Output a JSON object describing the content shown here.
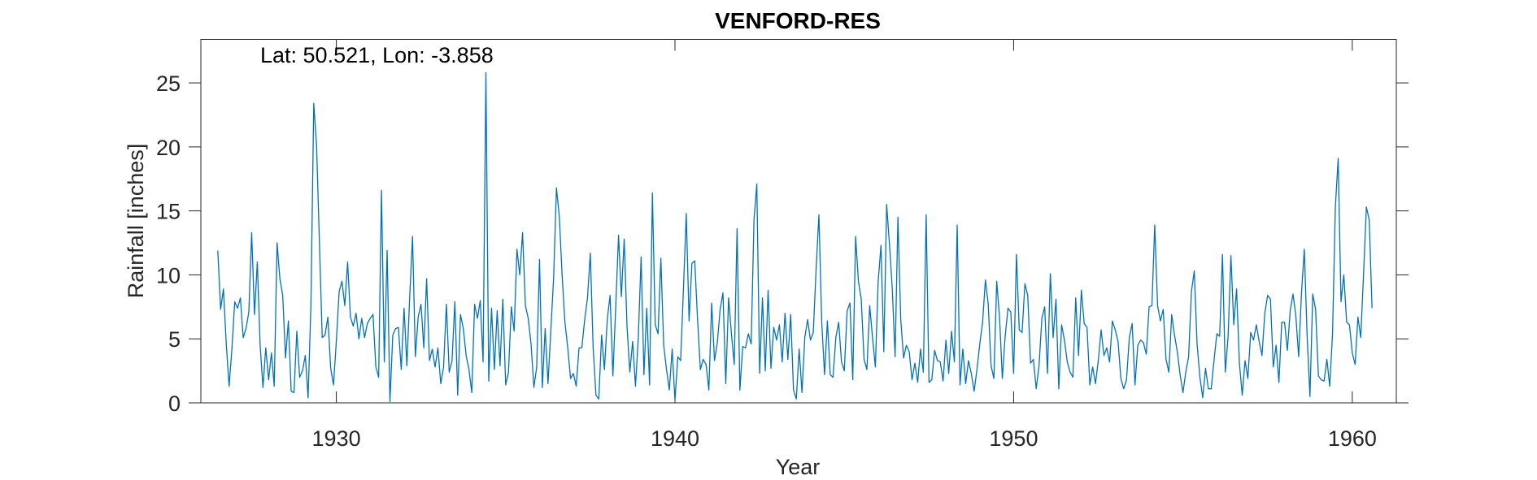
{
  "chart_data": {
    "type": "line",
    "title": "VENFORD-RES",
    "xlabel": "Year",
    "ylabel": "Rainfall [inches]",
    "annotation": "Lat: 50.521, Lon: -3.858",
    "xlim": [
      1926,
      1961.3
    ],
    "ylim": [
      0,
      28.4
    ],
    "xticks": [
      1930,
      1940,
      1950,
      1960
    ],
    "yticks": [
      0,
      5,
      10,
      15,
      20,
      25
    ],
    "grid": false,
    "legend": "none",
    "line_color": "#0072BD",
    "series": [
      {
        "start_year": 1926.5,
        "step_years": 0.0833333,
        "values": [
          11.9,
          7.3,
          8.9,
          4.6,
          1.3,
          4.2,
          7.9,
          7.4,
          8.2,
          5.1,
          5.8,
          7.1,
          13.3,
          6.9,
          11.0,
          4.5,
          1.2,
          4.3,
          1.8,
          3.9,
          1.3,
          12.5,
          9.7,
          8.4,
          3.5,
          6.4,
          0.9,
          0.8,
          5.6,
          2.0,
          2.5,
          3.7,
          0.4,
          7.7,
          23.4,
          20.1,
          12.6,
          5.1,
          5.3,
          6.7,
          2.7,
          1.4,
          4.8,
          8.7,
          9.5,
          7.6,
          11.0,
          6.7,
          6.0,
          7.0,
          5.0,
          6.6,
          5.1,
          6.2,
          6.6,
          6.9,
          2.8,
          2.0,
          16.6,
          3.2,
          11.9,
          0.1,
          5.3,
          5.8,
          5.9,
          2.6,
          7.4,
          2.9,
          8.3,
          13.0,
          3.6,
          6.7,
          7.7,
          4.3,
          9.7,
          3.3,
          4.2,
          2.8,
          4.3,
          1.5,
          2.8,
          7.7,
          2.4,
          3.3,
          7.9,
          0.6,
          6.9,
          5.8,
          3.7,
          2.6,
          0.8,
          7.7,
          6.6,
          8.0,
          3.2,
          25.8,
          1.7,
          7.4,
          2.6,
          7.2,
          2.9,
          8.1,
          1.4,
          2.4,
          7.5,
          5.6,
          12.0,
          10.0,
          13.3,
          7.6,
          6.6,
          4.6,
          1.2,
          2.8,
          11.2,
          1.2,
          5.8,
          1.5,
          5.6,
          9.8,
          16.8,
          14.6,
          10.0,
          6.3,
          4.3,
          1.9,
          2.3,
          1.3,
          4.3,
          4.3,
          6.5,
          8.2,
          11.7,
          4.3,
          0.6,
          0.3,
          5.3,
          2.6,
          6.5,
          8.4,
          2.1,
          7.5,
          13.1,
          8.3,
          12.8,
          6.0,
          2.4,
          4.8,
          1.3,
          5.1,
          11.4,
          2.2,
          7.4,
          1.4,
          16.4,
          6.1,
          5.4,
          11.3,
          4.5,
          2.6,
          1.0,
          4.2,
          0.2,
          3.6,
          3.3,
          8.9,
          14.8,
          6.4,
          10.9,
          11.1,
          6.5,
          2.6,
          3.4,
          3.0,
          1.0,
          7.8,
          3.3,
          4.7,
          7.3,
          8.6,
          1.5,
          8.2,
          5.4,
          3.0,
          13.6,
          1.0,
          4.4,
          4.3,
          5.4,
          4.6,
          14.3,
          17.1,
          2.3,
          8.2,
          2.5,
          8.8,
          2.7,
          5.9,
          4.9,
          6.1,
          3.2,
          7.0,
          3.4,
          6.9,
          1.0,
          0.3,
          4.2,
          0.8,
          5.1,
          6.5,
          4.9,
          5.5,
          10.4,
          14.7,
          6.3,
          2.2,
          6.4,
          2.2,
          2.0,
          5.1,
          6.3,
          3.2,
          2.5,
          7.2,
          7.8,
          1.8,
          13.0,
          9.5,
          8.1,
          3.4,
          2.6,
          7.6,
          5.1,
          2.8,
          9.5,
          12.3,
          4.0,
          15.5,
          12.4,
          8.9,
          3.6,
          14.5,
          6.5,
          3.5,
          4.5,
          4.0,
          1.8,
          3.1,
          1.6,
          4.2,
          2.4,
          14.7,
          1.6,
          1.8,
          4.1,
          3.3,
          3.2,
          1.7,
          4.9,
          2.3,
          5.6,
          3.2,
          13.9,
          1.4,
          4.2,
          1.5,
          3.3,
          2.3,
          0.9,
          2.6,
          4.6,
          6.3,
          9.6,
          7.7,
          2.9,
          1.9,
          9.5,
          6.7,
          1.9,
          5.2,
          7.4,
          7.1,
          2.3,
          11.6,
          5.7,
          5.5,
          9.3,
          8.4,
          3.1,
          3.4,
          1.1,
          2.9,
          6.6,
          7.5,
          2.3,
          10.1,
          5.1,
          8.1,
          1.1,
          6.1,
          4.9,
          3.2,
          2.4,
          2.0,
          8.2,
          3.7,
          8.8,
          6.2,
          5.9,
          1.4,
          2.8,
          1.5,
          3.3,
          5.7,
          3.7,
          4.3,
          3.2,
          6.4,
          5.7,
          4.8,
          1.9,
          1.1,
          1.8,
          5.1,
          6.2,
          1.4,
          4.5,
          4.9,
          4.7,
          3.8,
          7.5,
          7.6,
          13.9,
          7.6,
          6.4,
          7.3,
          3.4,
          2.4,
          6.9,
          5.3,
          4.0,
          2.2,
          0.8,
          2.4,
          3.6,
          8.7,
          10.3,
          4.6,
          2.0,
          0.4,
          2.7,
          1.1,
          1.1,
          3.3,
          5.4,
          5.2,
          11.6,
          2.4,
          5.2,
          11.5,
          6.1,
          8.9,
          3.1,
          0.6,
          3.3,
          1.9,
          5.5,
          4.9,
          6.1,
          4.8,
          3.7,
          7.0,
          8.4,
          8.1,
          2.8,
          4.5,
          1.6,
          6.3,
          6.3,
          4.1,
          7.2,
          8.5,
          6.8,
          3.6,
          8.6,
          12.0,
          5.2,
          0.5,
          8.5,
          7.3,
          2.1,
          1.8,
          1.7,
          3.4,
          1.3,
          5.4,
          15.3,
          19.1,
          7.9,
          10.0,
          6.3,
          6.1,
          3.9,
          3.0,
          6.7,
          5.1,
          10.1,
          15.3,
          14.3,
          7.4
        ]
      }
    ]
  }
}
